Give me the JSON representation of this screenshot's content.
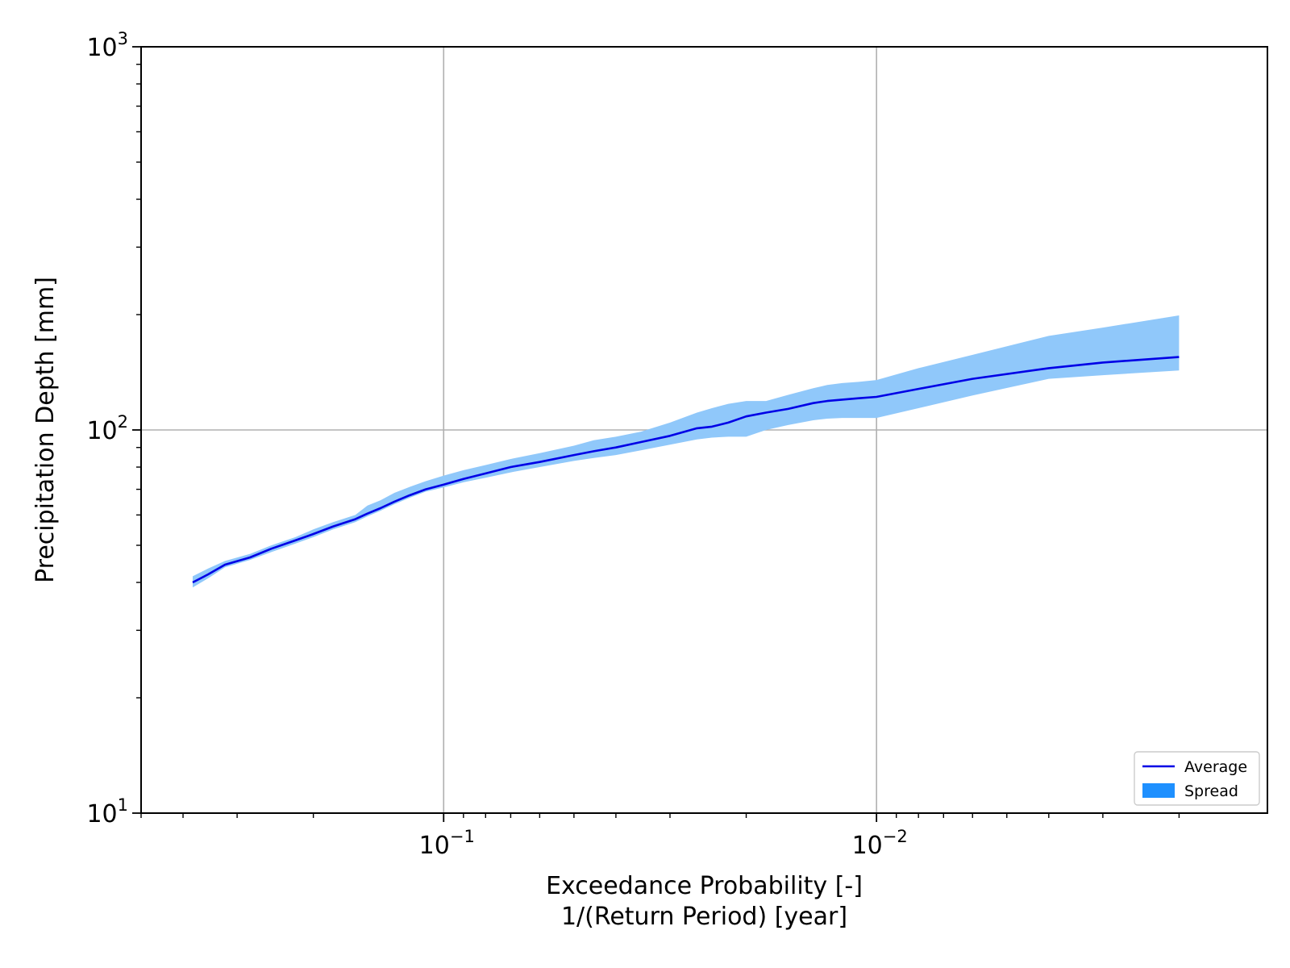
{
  "chart_data": {
    "type": "line",
    "title": "",
    "xlabel": [
      "Exceedance Probability [-]",
      "1/(Return Period) [year]"
    ],
    "ylabel": "Precipitation Depth [mm]",
    "xscale": "log",
    "x_axis_inverted": true,
    "yscale": "log",
    "xlim": [
      0.5,
      0.00125
    ],
    "ylim": [
      10,
      1000
    ],
    "x_major_ticks": [
      {
        "value": 0.1,
        "base": "10",
        "exp": "−1"
      },
      {
        "value": 0.01,
        "base": "10",
        "exp": "−2"
      }
    ],
    "y_major_ticks": [
      {
        "value": 10,
        "base": "10",
        "exp": "1"
      },
      {
        "value": 100,
        "base": "10",
        "exp": "2"
      },
      {
        "value": 1000,
        "base": "10",
        "exp": "3"
      }
    ],
    "grid": true,
    "legend": {
      "position": "lower right",
      "entries": [
        {
          "label": "Average",
          "kind": "line",
          "color": "#0000e6"
        },
        {
          "label": "Spread",
          "kind": "patch",
          "color": "#1e90ff"
        }
      ]
    },
    "series": [
      {
        "name": "Average",
        "color": "#0000e6",
        "x": [
          0.38,
          0.35,
          0.32,
          0.28,
          0.25,
          0.22,
          0.2,
          0.18,
          0.16,
          0.15,
          0.14,
          0.13,
          0.12,
          0.11,
          0.1,
          0.09,
          0.08,
          0.07,
          0.06,
          0.05,
          0.045,
          0.04,
          0.035,
          0.03,
          0.026,
          0.024,
          0.022,
          0.02,
          0.018,
          0.016,
          0.014,
          0.013,
          0.012,
          0.011,
          0.01,
          0.008,
          0.006,
          0.004,
          0.003,
          0.002
        ],
        "y": [
          40.0,
          42.0,
          44.5,
          46.5,
          49.0,
          51.5,
          53.5,
          56.0,
          58.5,
          60.5,
          62.5,
          65.0,
          67.5,
          70.0,
          72.0,
          74.5,
          77.0,
          80.0,
          82.5,
          86.0,
          88.0,
          90.0,
          93.0,
          96.5,
          101.0,
          102.0,
          104.5,
          108.5,
          111.0,
          113.5,
          117.5,
          119.0,
          120.0,
          121.0,
          122.0,
          128.0,
          136.0,
          145.0,
          150.0,
          155.0
        ]
      },
      {
        "name": "Spread",
        "color": "#90c8fa",
        "x": [
          0.38,
          0.35,
          0.32,
          0.28,
          0.25,
          0.22,
          0.2,
          0.18,
          0.16,
          0.15,
          0.14,
          0.13,
          0.12,
          0.11,
          0.1,
          0.09,
          0.08,
          0.07,
          0.06,
          0.05,
          0.045,
          0.04,
          0.035,
          0.03,
          0.026,
          0.024,
          0.022,
          0.02,
          0.018,
          0.016,
          0.014,
          0.013,
          0.012,
          0.011,
          0.01,
          0.008,
          0.006,
          0.004,
          0.003,
          0.002
        ],
        "y_low": [
          38.8,
          41.0,
          43.8,
          45.8,
          48.0,
          50.5,
          52.5,
          55.0,
          57.5,
          59.5,
          61.5,
          64.0,
          66.5,
          69.0,
          70.8,
          73.0,
          75.0,
          77.5,
          80.0,
          83.0,
          84.5,
          86.0,
          88.5,
          91.5,
          94.5,
          95.5,
          96.0,
          96.0,
          100.0,
          103.0,
          106.0,
          107.0,
          107.5,
          107.5,
          107.5,
          114.0,
          123.0,
          136.0,
          139.0,
          143.0
        ],
        "y_high": [
          41.5,
          43.5,
          45.5,
          47.5,
          50.0,
          52.5,
          55.0,
          57.5,
          60.0,
          63.5,
          65.5,
          68.5,
          71.0,
          73.5,
          76.0,
          78.5,
          81.0,
          84.0,
          87.0,
          91.0,
          94.0,
          96.0,
          99.0,
          104.5,
          111.0,
          114.0,
          117.0,
          119.0,
          119.0,
          123.5,
          128.5,
          131.0,
          132.5,
          133.5,
          135.0,
          145.0,
          157.0,
          176.0,
          185.0,
          199.0
        ]
      }
    ]
  }
}
